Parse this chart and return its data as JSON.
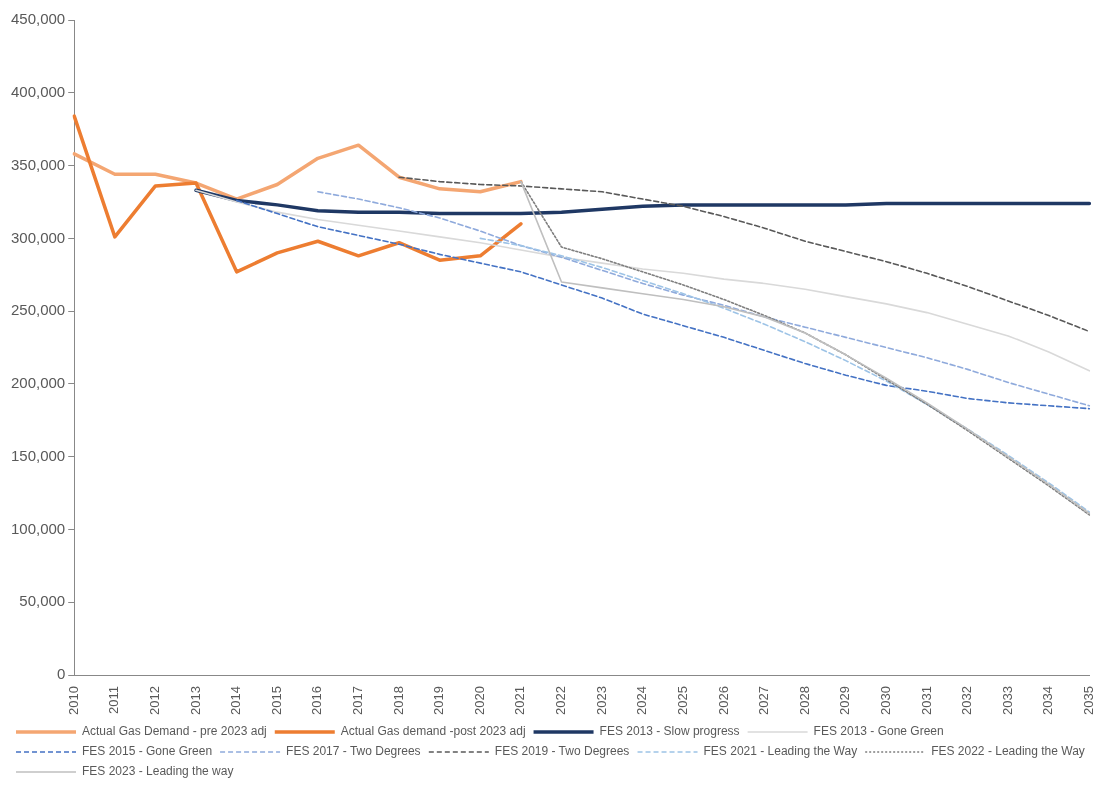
{
  "chart_data": {
    "type": "line",
    "categories": [
      "2010",
      "2011",
      "2012",
      "2013",
      "2014",
      "2015",
      "2016",
      "2017",
      "2018",
      "2019",
      "2020",
      "2021",
      "2022",
      "2023",
      "2024",
      "2025",
      "2026",
      "2027",
      "2028",
      "2029",
      "2030",
      "2031",
      "2032",
      "2033",
      "2034",
      "2035"
    ],
    "ylim": [
      0,
      450000
    ],
    "yticks": [
      {
        "value": 0,
        "label": "0"
      },
      {
        "value": 50000,
        "label": "50,000"
      },
      {
        "value": 100000,
        "label": "100,000"
      },
      {
        "value": 150000,
        "label": "150,000"
      },
      {
        "value": 200000,
        "label": "200,000"
      },
      {
        "value": 250000,
        "label": "250,000"
      },
      {
        "value": 300000,
        "label": "300,000"
      },
      {
        "value": 350000,
        "label": "350,000"
      },
      {
        "value": 400000,
        "label": "400,000"
      },
      {
        "value": 450000,
        "label": "450,000"
      }
    ],
    "grid": false,
    "legend": "bottom",
    "series": [
      {
        "name": "Actual Gas Demand - pre 2023 adj",
        "color": "#f4a672",
        "line_style": "solid",
        "values": [
          358000,
          344000,
          344000,
          338000,
          327000,
          337000,
          355000,
          364000,
          342000,
          334000,
          332000,
          339000,
          null,
          null,
          null,
          null,
          null,
          null,
          null,
          null,
          null,
          null,
          null,
          null,
          null,
          null
        ]
      },
      {
        "name": "Actual Gas demand -post 2023 adj",
        "color": "#ed7d31",
        "line_style": "solid",
        "values": [
          384000,
          301000,
          336000,
          338000,
          277000,
          290000,
          298000,
          288000,
          297000,
          285000,
          288000,
          310000,
          null,
          null,
          null,
          null,
          null,
          null,
          null,
          null,
          null,
          null,
          null,
          null,
          null,
          null
        ]
      },
      {
        "name": "FES 2013 - Slow progress",
        "color": "#1f3864",
        "line_style": "solid",
        "values": [
          null,
          null,
          null,
          333000,
          326000,
          323000,
          319000,
          318000,
          318000,
          317000,
          317000,
          317000,
          318000,
          320000,
          322000,
          323000,
          323000,
          323000,
          323000,
          323000,
          324000,
          324000,
          324000,
          324000,
          324000,
          324000
        ]
      },
      {
        "name": "FES 2013 - Gone Green",
        "color": "#d9d9d9",
        "line_style": "solid",
        "values": [
          null,
          null,
          null,
          333000,
          325000,
          318000,
          313000,
          309000,
          305000,
          301000,
          297000,
          292000,
          287000,
          283000,
          279000,
          276000,
          272000,
          269000,
          265000,
          260000,
          255000,
          249000,
          241000,
          233000,
          222000,
          209000
        ]
      },
      {
        "name": "FES 2015 - Gone Green",
        "color": "#4472c4",
        "line_style": "dashed",
        "values": [
          null,
          null,
          null,
          null,
          326000,
          317000,
          308000,
          302000,
          296000,
          289000,
          283000,
          277000,
          268000,
          259000,
          248000,
          240000,
          232000,
          223000,
          214000,
          206000,
          199000,
          195000,
          190000,
          187000,
          185000,
          183000
        ]
      },
      {
        "name": "FES 2017 - Two Degrees",
        "color": "#8faadc",
        "line_style": "dashed",
        "values": [
          null,
          null,
          null,
          null,
          null,
          null,
          332000,
          327000,
          321000,
          314000,
          305000,
          295000,
          287000,
          278000,
          269000,
          261000,
          254000,
          246000,
          239000,
          232000,
          225000,
          218000,
          210000,
          201000,
          193000,
          185000
        ]
      },
      {
        "name": "FES 2019 - Two Degrees",
        "color": "#595959",
        "line_style": "dashed",
        "values": [
          null,
          null,
          null,
          null,
          null,
          null,
          null,
          null,
          342000,
          339000,
          337000,
          336000,
          334000,
          332000,
          327000,
          322000,
          315000,
          307000,
          298000,
          291000,
          284000,
          276000,
          267000,
          257000,
          247000,
          236000
        ]
      },
      {
        "name": "FES 2021 - Leading the Way",
        "color": "#9dc3e6",
        "line_style": "dashed",
        "values": [
          null,
          null,
          null,
          null,
          null,
          null,
          null,
          null,
          null,
          null,
          300000,
          295000,
          288000,
          280000,
          271000,
          262000,
          252000,
          241000,
          229000,
          216000,
          202000,
          186000,
          169000,
          151000,
          132000,
          112000
        ]
      },
      {
        "name": "FES 2022 - Leading the Way",
        "color": "#7f7f7f",
        "line_style": "dotted",
        "values": [
          null,
          null,
          null,
          null,
          null,
          null,
          null,
          null,
          null,
          null,
          null,
          339000,
          294000,
          286000,
          277000,
          268000,
          258000,
          247000,
          235000,
          220000,
          203000,
          186000,
          168000,
          149000,
          130000,
          110000
        ]
      },
      {
        "name": "FES 2023 - Leading the way",
        "color": "#bfbfbf",
        "line_style": "solid",
        "values": [
          null,
          null,
          null,
          null,
          null,
          null,
          null,
          null,
          null,
          null,
          null,
          339000,
          270000,
          266000,
          262000,
          258000,
          253000,
          246000,
          235000,
          220000,
          204000,
          187000,
          169000,
          150000,
          131000,
          111000
        ]
      }
    ]
  }
}
